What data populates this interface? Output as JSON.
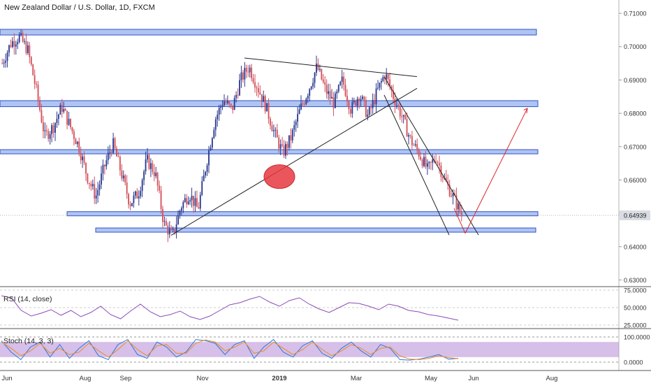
{
  "chart_data": {
    "type": "candlestick",
    "title": "New Zealand Dollar / U.S. Dollar, 1D, FXCM",
    "x_tick_labels": [
      "Jun",
      "Aug",
      "Sep",
      "Nov",
      "2019",
      "Mar",
      "May",
      "Jun",
      "Aug"
    ],
    "y_ticks": [
      "0.71000",
      "0.70000",
      "0.69000",
      "0.68000",
      "0.67000",
      "0.66000",
      "0.65000",
      "0.64000",
      "0.63000"
    ],
    "ylim": [
      0.628,
      0.714
    ],
    "last_price": "0.64939",
    "up_color": "#2b3a8f",
    "down_color": "#d4505a",
    "zone_color": "#4f7ce5",
    "close_path": [
      [
        "Jun",
        0.695
      ],
      [
        "Jun",
        0.701
      ],
      [
        "Jun",
        0.703
      ],
      [
        "Jun",
        0.699
      ],
      [
        "Jun",
        0.687
      ],
      [
        "Aug",
        0.673
      ],
      [
        "Aug",
        0.676
      ],
      [
        "Aug",
        0.682
      ],
      [
        "Aug",
        0.676
      ],
      [
        "Aug",
        0.67
      ],
      [
        "Aug",
        0.661
      ],
      [
        "Aug",
        0.655
      ],
      [
        "Sep",
        0.664
      ],
      [
        "Sep",
        0.671
      ],
      [
        "Sep",
        0.662
      ],
      [
        "Sep",
        0.653
      ],
      [
        "Sep",
        0.656
      ],
      [
        "Sep",
        0.666
      ],
      [
        "Sep",
        0.662
      ],
      [
        "Sep",
        0.647
      ],
      [
        "Sep",
        0.643
      ],
      [
        "Sep",
        0.652
      ],
      [
        "Sep",
        0.656
      ],
      [
        "Nov",
        0.651
      ],
      [
        "Nov",
        0.665
      ],
      [
        "Nov",
        0.678
      ],
      [
        "Nov",
        0.684
      ],
      [
        "Nov",
        0.681
      ],
      [
        "Nov",
        0.69
      ],
      [
        "Nov",
        0.694
      ],
      [
        "2019",
        0.688
      ],
      [
        "2019",
        0.682
      ],
      [
        "2019",
        0.674
      ],
      [
        "2019",
        0.668
      ],
      [
        "2019",
        0.673
      ],
      [
        "2019",
        0.681
      ],
      [
        "2019",
        0.687
      ],
      [
        "2019",
        0.694
      ],
      [
        "2019",
        0.687
      ],
      [
        "2019",
        0.683
      ],
      [
        "2019",
        0.69
      ],
      [
        "2019",
        0.681
      ],
      [
        "Mar",
        0.686
      ],
      [
        "Mar",
        0.679
      ],
      [
        "Mar",
        0.686
      ],
      [
        "Mar",
        0.692
      ],
      [
        "Mar",
        0.685
      ],
      [
        "Mar",
        0.679
      ],
      [
        "Mar",
        0.672
      ],
      [
        "Mar",
        0.668
      ],
      [
        "May",
        0.663
      ],
      [
        "May",
        0.667
      ],
      [
        "May",
        0.66
      ],
      [
        "May",
        0.655
      ],
      [
        "May",
        0.6494
      ]
    ],
    "horizontal_zones": [
      {
        "low": 0.7035,
        "high": 0.7052
      },
      {
        "low": 0.682,
        "high": 0.6838
      },
      {
        "low": 0.6679,
        "high": 0.6691
      },
      {
        "low": 0.6493,
        "high": 0.6505
      },
      {
        "low": 0.6444,
        "high": 0.6456
      }
    ],
    "rsi": {
      "label": "RSI (14, close)",
      "y_ticks": [
        "75.0000",
        "50.0000",
        "25.0000"
      ],
      "ylim": [
        20,
        80
      ],
      "values": [
        67,
        64,
        46,
        38,
        42,
        47,
        39,
        46,
        37,
        43,
        52,
        40,
        34,
        45,
        55,
        44,
        37,
        40,
        45,
        37,
        33,
        38,
        46,
        54,
        57,
        62,
        66,
        58,
        52,
        60,
        64,
        55,
        48,
        43,
        50,
        57,
        56,
        52,
        47,
        55,
        52,
        46,
        44,
        40,
        38,
        35,
        32
      ]
    },
    "stoch": {
      "label": "Stoch (14, 3, 3)",
      "y_ticks": [
        "100.0000",
        "0.0000"
      ],
      "ylim": [
        0,
        100
      ],
      "k": [
        85,
        40,
        10,
        60,
        80,
        20,
        70,
        15,
        55,
        85,
        25,
        10,
        70,
        90,
        30,
        15,
        80,
        60,
        20,
        40,
        90,
        85,
        75,
        30,
        70,
        85,
        15,
        60,
        90,
        40,
        20,
        65,
        85,
        35,
        15,
        55,
        80,
        45,
        20,
        70,
        55,
        10,
        8,
        12,
        20,
        30,
        12,
        15
      ],
      "d": [
        80,
        55,
        25,
        45,
        75,
        35,
        55,
        30,
        40,
        75,
        45,
        20,
        50,
        85,
        50,
        25,
        65,
        70,
        35,
        35,
        75,
        88,
        80,
        45,
        60,
        80,
        35,
        45,
        80,
        55,
        30,
        50,
        80,
        50,
        25,
        45,
        70,
        55,
        30,
        55,
        60,
        25,
        12,
        10,
        15,
        25,
        18,
        14
      ]
    }
  }
}
